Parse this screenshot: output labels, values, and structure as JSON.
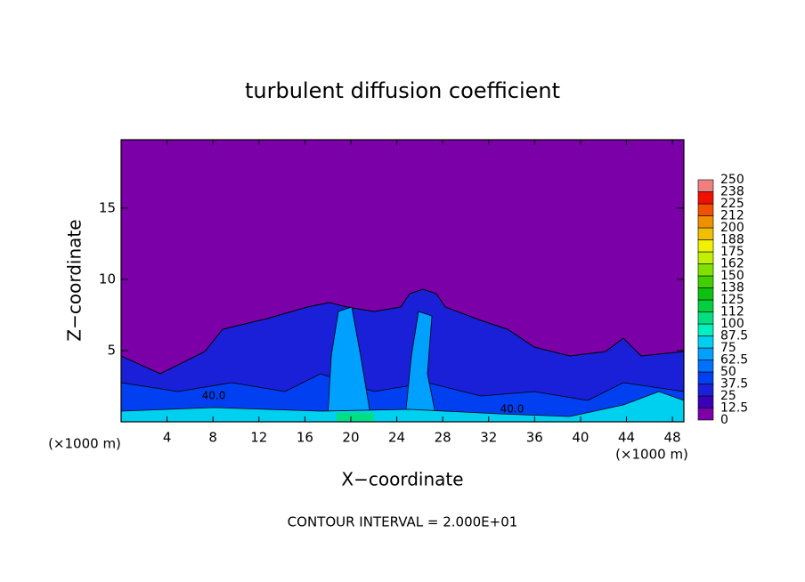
{
  "chart_data": {
    "type": "contour",
    "title": "turbulent diffusion coefficient",
    "x_label": "X−coordinate",
    "y_label": "Z−coordinate",
    "x_unit": "(×1000 m)",
    "xlim": [
      0,
      49
    ],
    "xticks": [
      4,
      8,
      12,
      16,
      20,
      24,
      28,
      32,
      36,
      40,
      44,
      48
    ],
    "ylim": [
      0,
      19.8
    ],
    "yticks": [
      5,
      10,
      15
    ],
    "colorbar": {
      "levels": [
        0,
        12.5,
        25,
        37.5,
        50,
        62.5,
        75,
        87.5,
        100,
        112,
        125,
        138,
        150,
        162,
        175,
        188,
        200,
        212,
        225,
        238,
        250
      ],
      "colors": [
        "#7b00a8",
        "#3a00b8",
        "#1a20d8",
        "#0040f0",
        "#0070ff",
        "#00a0ff",
        "#00d0f0",
        "#00f0c0",
        "#00e080",
        "#00d040",
        "#10c010",
        "#40d000",
        "#80e000",
        "#c0f000",
        "#f0f000",
        "#f0c000",
        "#f09000",
        "#f05000",
        "#f01000",
        "#f08080"
      ]
    },
    "contour_labels": [
      "40.0",
      "40.0"
    ],
    "footer": "CONTOUR INTERVAL = 2.000E+01"
  }
}
